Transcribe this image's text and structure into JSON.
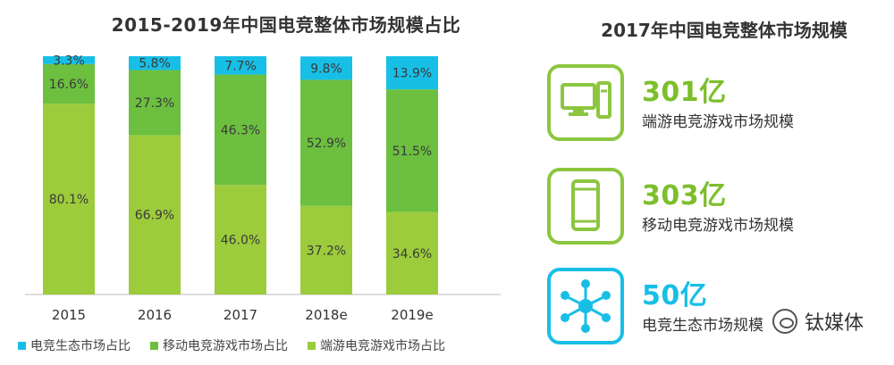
{
  "chart_data": {
    "type": "bar",
    "stacked": true,
    "title": "2015-2019年中国电竞整体市场规模占比",
    "categories": [
      "2015",
      "2016",
      "2017",
      "2018e",
      "2019e"
    ],
    "series": [
      {
        "name": "端游电竞游戏市场占比",
        "color": "#9ccc3c",
        "values": [
          80.1,
          66.9,
          46.0,
          37.2,
          34.6
        ],
        "labels": [
          "80.1%",
          "66.9%",
          "46.0%",
          "37.2%",
          "34.6%"
        ]
      },
      {
        "name": "移动电竞游戏市场占比",
        "color": "#6cbf3f",
        "values": [
          16.6,
          27.3,
          46.3,
          52.9,
          51.5
        ],
        "labels": [
          "16.6%",
          "27.3%",
          "46.3%",
          "52.9%",
          "51.5%"
        ]
      },
      {
        "name": "电竞生态市场占比",
        "color": "#17bfe6",
        "values": [
          3.3,
          5.8,
          7.7,
          9.8,
          13.9
        ],
        "labels": [
          "3.3%",
          "5.8%",
          "7.7%",
          "9.8%",
          "13.9%"
        ]
      }
    ],
    "ylim": [
      0,
      100
    ],
    "legend_position": "bottom",
    "grid": false
  },
  "legend": [
    {
      "label": "电竞生态市场占比",
      "color": "#17bfe6"
    },
    {
      "label": "移动电竞游戏市场占比",
      "color": "#6cbf3f"
    },
    {
      "label": "端游电竞游戏市场占比",
      "color": "#9ccc3c"
    }
  ],
  "right_panel": {
    "title": "2017年中国电竞整体市场规模",
    "stats": [
      {
        "value": "301亿",
        "label": "端游电竞游戏市场规模",
        "icon": "desktop-computer-icon",
        "color": "#8cc63f"
      },
      {
        "value": "303亿",
        "label": "移动电竞游戏市场规模",
        "icon": "mobile-phone-icon",
        "color": "#8cc63f"
      },
      {
        "value": "50亿",
        "label": "电竞生态市场规模",
        "icon": "network-hub-icon",
        "color": "#17bfe6"
      }
    ]
  },
  "watermark": {
    "text": "钛媒体",
    "icon": "wechat-icon"
  }
}
